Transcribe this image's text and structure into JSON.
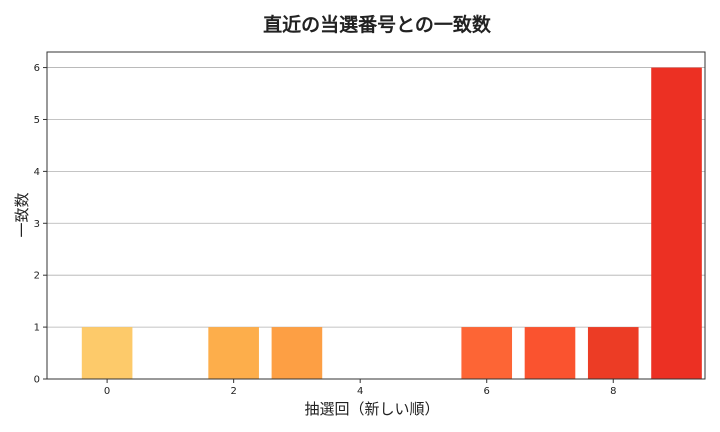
{
  "chart_data": {
    "type": "bar",
    "title": "直近の当選番号との一致数",
    "xlabel": "抽選回（新しい順）",
    "ylabel": "一致数",
    "x": [
      0,
      1,
      2,
      3,
      4,
      5,
      6,
      7,
      8,
      9
    ],
    "values": [
      1,
      0,
      1,
      1,
      0,
      0,
      1,
      1,
      1,
      6
    ],
    "colors": [
      "#fdca6a",
      "#fdc262",
      "#fdae4b",
      "#fd9f44",
      "#fd8c3c",
      "#fc6d33",
      "#fd6535",
      "#fa532f",
      "#ec3c25",
      "#ec3023"
    ],
    "xticks": [
      0,
      2,
      4,
      6,
      8
    ],
    "yticks": [
      0,
      1,
      2,
      3,
      4,
      5,
      6
    ],
    "xlim": [
      -0.95,
      9.45
    ],
    "ylim": [
      0,
      6.3
    ],
    "grid": "y"
  }
}
